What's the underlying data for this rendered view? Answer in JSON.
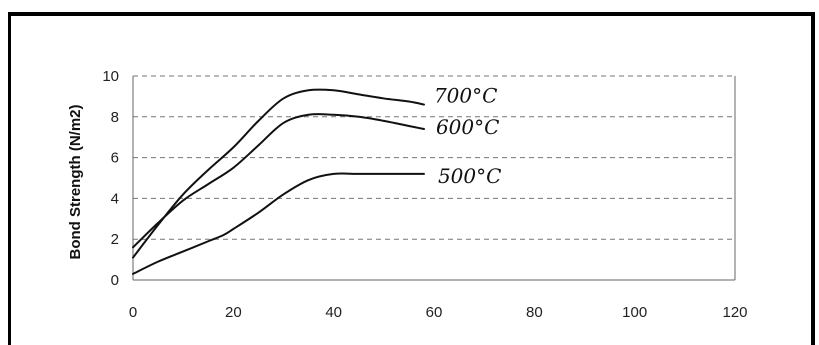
{
  "chart_data": {
    "type": "line",
    "ylabel": "Bond Strength (N/m2)",
    "xlabel": "",
    "xlim": [
      0,
      120
    ],
    "ylim": [
      0,
      10
    ],
    "x_ticks": [
      "0",
      "20",
      "40",
      "60",
      "80",
      "100",
      "120"
    ],
    "y_ticks": [
      "0",
      "2",
      "4",
      "6",
      "8",
      "10"
    ],
    "grid": "horizontal",
    "series": [
      {
        "name": "700°C",
        "x": [
          0,
          5,
          10,
          15,
          20,
          25,
          30,
          35,
          40,
          45,
          50,
          55,
          58
        ],
        "y": [
          1.1,
          2.7,
          4.2,
          5.4,
          6.5,
          7.8,
          8.9,
          9.3,
          9.3,
          9.1,
          8.9,
          8.75,
          8.6
        ]
      },
      {
        "name": "600°C",
        "x": [
          0,
          5,
          10,
          15,
          20,
          25,
          30,
          35,
          40,
          45,
          50,
          55,
          58
        ],
        "y": [
          1.6,
          2.8,
          3.9,
          4.7,
          5.5,
          6.6,
          7.7,
          8.1,
          8.1,
          8.0,
          7.8,
          7.55,
          7.4
        ]
      },
      {
        "name": "500°C",
        "x": [
          0,
          5,
          10,
          15,
          18,
          20,
          25,
          30,
          35,
          40,
          45,
          50,
          55,
          58
        ],
        "y": [
          0.3,
          0.9,
          1.4,
          1.9,
          2.2,
          2.5,
          3.3,
          4.2,
          4.9,
          5.2,
          5.2,
          5.2,
          5.2,
          5.2
        ]
      }
    ]
  }
}
